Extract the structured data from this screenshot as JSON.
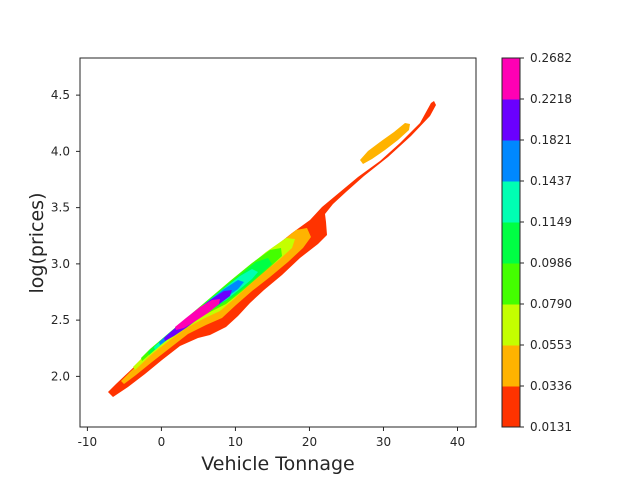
{
  "chart_data": {
    "type": "contour",
    "title": "",
    "xlabel": "Vehicle Tonnage",
    "ylabel": "log(prices)",
    "xlim": [
      -11,
      42.5
    ],
    "ylim": [
      1.55,
      4.83
    ],
    "xticks": [
      "-10",
      "0",
      "10",
      "20",
      "30",
      "40"
    ],
    "yticks": [
      "2.0",
      "2.5",
      "3.0",
      "3.5",
      "4.0",
      "4.5"
    ],
    "grid": false,
    "colorbar": {
      "levels": [
        "0.0131",
        "0.0336",
        "0.0553",
        "0.0790",
        "0.0986",
        "0.1149",
        "0.1437",
        "0.1821",
        "0.2218",
        "0.2682"
      ],
      "colors": [
        "#ff3300",
        "#ffb300",
        "#c4ff00",
        "#44ff00",
        "#00ff44",
        "#00ffb3",
        "#0088ff",
        "#6a00ff",
        "#ff00b4"
      ],
      "placement": "right"
    },
    "ridge": [
      [
        -6.5,
        1.85
      ],
      [
        0,
        2.2
      ],
      [
        5,
        2.55
      ],
      [
        10,
        2.85
      ],
      [
        15,
        3.15
      ],
      [
        20,
        3.45
      ],
      [
        25,
        3.75
      ],
      [
        30,
        4.1
      ],
      [
        36.5,
        4.42
      ]
    ],
    "peak": {
      "x": 5,
      "y": 2.55
    }
  }
}
